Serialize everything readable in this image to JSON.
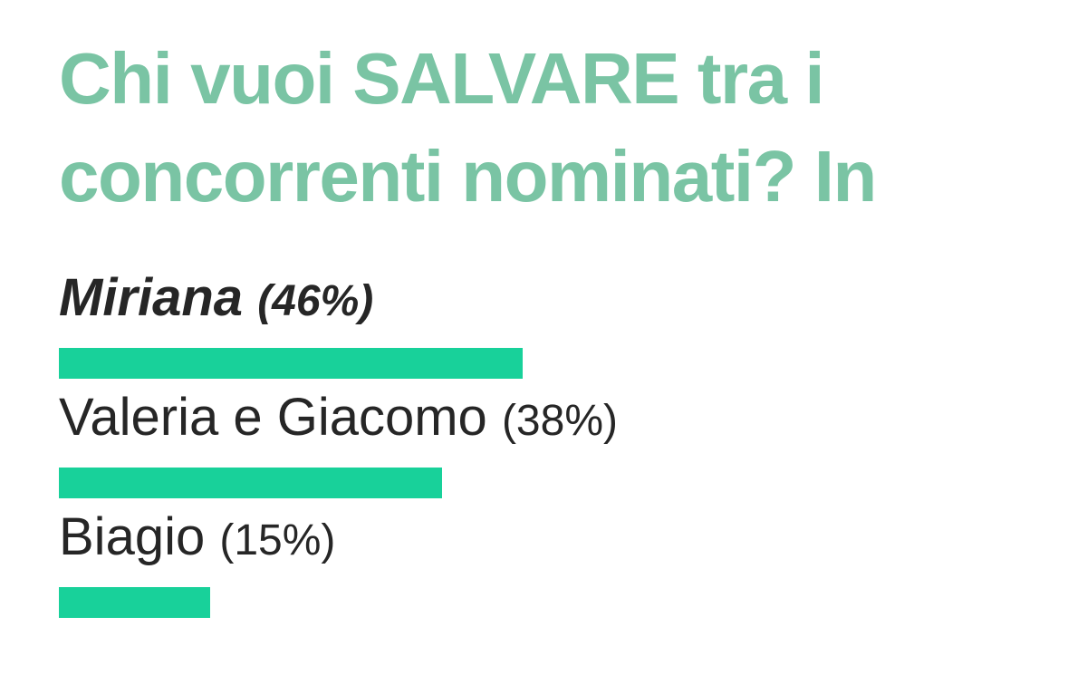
{
  "poll": {
    "title_line1": "Chi vuoi SALVARE tra i",
    "title_line2": "concorrenti nominati? In",
    "title_color": "#7ac4a4",
    "bar_color": "#18d19a",
    "text_color": "#262626",
    "options": [
      {
        "name": "Miriana",
        "percent_label": "(46%)",
        "percent": 46,
        "emphasis": true
      },
      {
        "name": "Valeria e Giacomo",
        "percent_label": "(38%)",
        "percent": 38,
        "emphasis": false
      },
      {
        "name": "Biagio",
        "percent_label": "(15%)",
        "percent": 15,
        "emphasis": false
      }
    ]
  },
  "chart_data": {
    "type": "bar",
    "orientation": "horizontal",
    "title": "Chi vuoi SALVARE tra i concorrenti nominati? In",
    "categories": [
      "Miriana",
      "Valeria e Giacomo",
      "Biagio"
    ],
    "values": [
      46,
      38,
      15
    ],
    "value_unit": "%",
    "xlim": [
      0,
      100
    ],
    "grid": false,
    "legend": "none",
    "bar_color": "#18d19a",
    "annotations": [
      "Miriana (46%)",
      "Valeria e Giacomo (38%)",
      "Biagio (15%)"
    ]
  }
}
